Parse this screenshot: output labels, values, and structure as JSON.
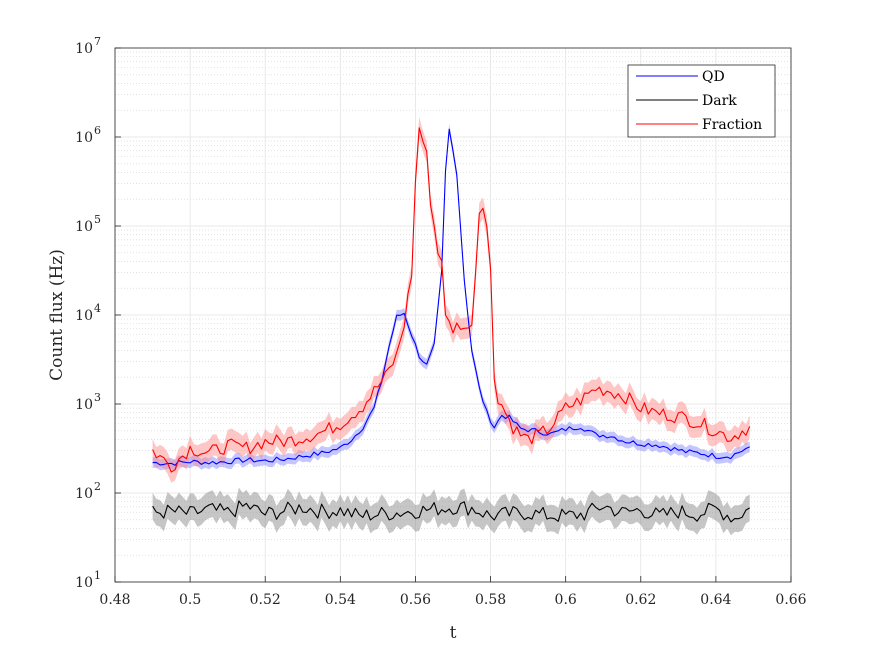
{
  "chart_data": {
    "type": "line",
    "xlabel": "t",
    "ylabel": "Count flux (Hz)",
    "xlim": [
      0.48,
      0.66
    ],
    "ylim": [
      10,
      10000000
    ],
    "yscale": "log",
    "grid": true,
    "minor_grid": true,
    "legend_position": "top-right",
    "x_ticks": [
      "0.48",
      "0.5",
      "0.52",
      "0.54",
      "0.56",
      "0.58",
      "0.6",
      "0.62",
      "0.64",
      "0.66"
    ],
    "y_ticks": [
      {
        "base": "10",
        "exp": "1"
      },
      {
        "base": "10",
        "exp": "2"
      },
      {
        "base": "10",
        "exp": "3"
      },
      {
        "base": "10",
        "exp": "4"
      },
      {
        "base": "10",
        "exp": "5"
      },
      {
        "base": "10",
        "exp": "6"
      },
      {
        "base": "10",
        "exp": "7"
      }
    ],
    "series": [
      {
        "name": "QD",
        "color": "#0000ff",
        "band_color": "#8080ff",
        "x": [
          0.49,
          0.495,
          0.5,
          0.505,
          0.51,
          0.515,
          0.52,
          0.525,
          0.53,
          0.535,
          0.54,
          0.543,
          0.546,
          0.549,
          0.551,
          0.553,
          0.555,
          0.557,
          0.559,
          0.561,
          0.563,
          0.565,
          0.567,
          0.568,
          0.569,
          0.571,
          0.573,
          0.575,
          0.577,
          0.579,
          0.581,
          0.583,
          0.585,
          0.588,
          0.592,
          0.596,
          0.6,
          0.604,
          0.608,
          0.612,
          0.616,
          0.62,
          0.624,
          0.628,
          0.632,
          0.636,
          0.64,
          0.644,
          0.649
        ],
        "y": [
          220,
          215,
          225,
          220,
          225,
          235,
          230,
          240,
          260,
          280,
          320,
          400,
          550,
          900,
          1800,
          4500,
          9500,
          10500,
          6000,
          3500,
          2700,
          4500,
          30000,
          400000,
          1200000,
          400000,
          25000,
          4000,
          1500,
          800,
          550,
          750,
          700,
          530,
          500,
          460,
          520,
          560,
          450,
          440,
          380,
          360,
          350,
          320,
          290,
          280,
          260,
          260,
          330
        ],
        "band": 0.06
      },
      {
        "name": "Dark",
        "color": "#000000",
        "band_color": "#808080",
        "x": [
          0.49,
          0.495,
          0.5,
          0.505,
          0.51,
          0.515,
          0.52,
          0.525,
          0.53,
          0.535,
          0.54,
          0.545,
          0.55,
          0.555,
          0.56,
          0.565,
          0.57,
          0.575,
          0.58,
          0.585,
          0.59,
          0.595,
          0.6,
          0.605,
          0.61,
          0.615,
          0.62,
          0.625,
          0.63,
          0.635,
          0.64,
          0.645,
          0.649
        ],
        "y": [
          60,
          62,
          58,
          65,
          60,
          72,
          58,
          63,
          70,
          62,
          64,
          55,
          58,
          60,
          63,
          66,
          70,
          68,
          55,
          58,
          60,
          56,
          55,
          58,
          72,
          60,
          65,
          55,
          62,
          58,
          66,
          52,
          68
        ],
        "band": 0.15
      },
      {
        "name": "Fraction",
        "color": "#ff0000",
        "band_color": "#ff8080",
        "x": [
          0.49,
          0.495,
          0.5,
          0.505,
          0.51,
          0.515,
          0.52,
          0.525,
          0.53,
          0.535,
          0.54,
          0.543,
          0.546,
          0.549,
          0.552,
          0.555,
          0.557,
          0.559,
          0.56,
          0.561,
          0.562,
          0.563,
          0.564,
          0.566,
          0.567,
          0.568,
          0.57,
          0.572,
          0.574,
          0.575,
          0.576,
          0.577,
          0.578,
          0.579,
          0.58,
          0.581,
          0.582,
          0.584,
          0.586,
          0.588,
          0.59,
          0.593,
          0.596,
          0.6,
          0.604,
          0.608,
          0.612,
          0.616,
          0.62,
          0.624,
          0.628,
          0.632,
          0.636,
          0.64,
          0.644,
          0.649
        ],
        "y": [
          300,
          200,
          320,
          280,
          340,
          320,
          380,
          380,
          420,
          480,
          600,
          750,
          950,
          1400,
          2000,
          3500,
          8000,
          30000,
          300000,
          1300000,
          900000,
          600000,
          200000,
          50000,
          45000,
          9000,
          7000,
          8000,
          6500,
          9000,
          30000,
          150000,
          190000,
          100000,
          30000,
          2000,
          1200,
          800,
          550,
          450,
          400,
          450,
          550,
          900,
          1100,
          1500,
          1400,
          1200,
          900,
          800,
          750,
          700,
          600,
          500,
          420,
          560
        ],
        "band": 0.12
      }
    ]
  }
}
